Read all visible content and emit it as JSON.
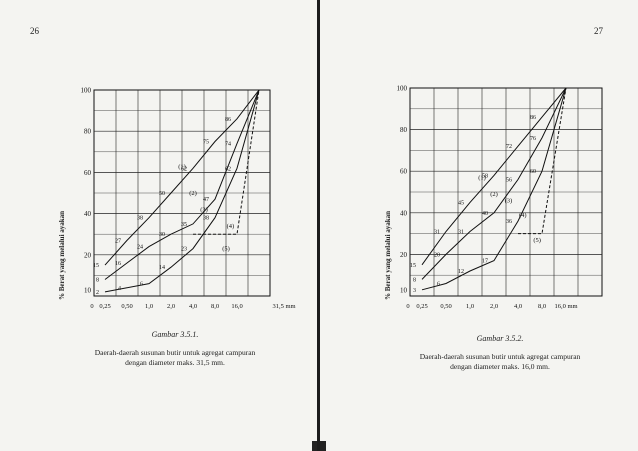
{
  "pages": {
    "left": {
      "page_number": "26",
      "caption_title": "Gambar 3.5.1.",
      "caption_body_line1": "Daerah-daerah susunan butir untuk agregat campuran",
      "caption_body_line2": "dengan diameter maks. 31,5 mm.",
      "y_axis_label": "% Berat yang melalui ayakan"
    },
    "right": {
      "page_number": "27",
      "caption_title": "Gambar 3.5.2.",
      "caption_body_line1": "Daerah-daerah susunan butir untuk agregat campuran",
      "caption_body_line2": "dengan diameter maks. 16,0 mm.",
      "y_axis_label": "% Berat yang melalui ayakan"
    }
  },
  "chart_data": [
    {
      "type": "line",
      "title": "",
      "ylabel": "% Berat yang melalui ayakan",
      "x_tick_labels": [
        "0",
        "0,25",
        "0,50",
        "1,0",
        "2,0",
        "4,0",
        "8,0",
        "16,0",
        "31,5 mm"
      ],
      "y_tick_labels": [
        "10",
        "20",
        "40",
        "60",
        "80",
        "100"
      ],
      "ylim": [
        0,
        100
      ],
      "grid": true,
      "x": [
        "0,25",
        "0,50",
        "1,0",
        "2,0",
        "4,0",
        "8,0",
        "16,0",
        "31,5"
      ],
      "series": [
        {
          "name": "",
          "values": [
            2,
            4,
            6,
            14,
            23,
            38,
            62,
            100
          ],
          "style": "solid"
        },
        {
          "name": "",
          "values": [
            8,
            16,
            24,
            30,
            35,
            47,
            74,
            100
          ],
          "style": "solid"
        },
        {
          "name": "",
          "values": [
            15,
            27,
            38,
            50,
            62,
            75,
            86,
            100
          ],
          "style": "solid"
        },
        {
          "name": "",
          "values": [
            null,
            null,
            null,
            null,
            30,
            30,
            30,
            100
          ],
          "style": "dashed"
        }
      ],
      "region_labels": [
        "(1)",
        "(2)",
        "(3)",
        "(4)",
        "(5)"
      ],
      "point_labels": [
        "2",
        "4",
        "6",
        "14",
        "23",
        "38",
        "62",
        "8",
        "16",
        "24",
        "30",
        "35",
        "47",
        "74",
        "15",
        "27",
        "38",
        "50",
        "62",
        "86",
        "30"
      ]
    },
    {
      "type": "line",
      "title": "",
      "ylabel": "% Berat yang melalui ayakan",
      "x_tick_labels": [
        "0",
        "0,25",
        "0,50",
        "1,0",
        "2,0",
        "4,0",
        "8,0",
        "16,0 mm"
      ],
      "y_tick_labels": [
        "10",
        "20",
        "40",
        "60",
        "80",
        "100"
      ],
      "ylim": [
        0,
        100
      ],
      "grid": true,
      "x": [
        "0,25",
        "0,50",
        "1,0",
        "2,0",
        "4,0",
        "8,0",
        "16,0"
      ],
      "series": [
        {
          "name": "",
          "values": [
            3,
            6,
            12,
            17,
            36,
            60,
            100
          ],
          "style": "solid"
        },
        {
          "name": "",
          "values": [
            8,
            20,
            31,
            40,
            56,
            76,
            100
          ],
          "style": "solid"
        },
        {
          "name": "",
          "values": [
            15,
            31,
            45,
            58,
            72,
            86,
            100
          ],
          "style": "solid"
        },
        {
          "name": "",
          "values": [
            null,
            null,
            null,
            null,
            30,
            30,
            100
          ],
          "style": "dashed"
        }
      ],
      "region_labels": [
        "(1)",
        "(2)",
        "(3)",
        "(4)",
        "(5)"
      ],
      "point_labels": [
        "3",
        "6",
        "12",
        "17",
        "36",
        "60",
        "8",
        "31",
        "40",
        "56",
        "76",
        "45",
        "58",
        "72",
        "86"
      ]
    }
  ]
}
